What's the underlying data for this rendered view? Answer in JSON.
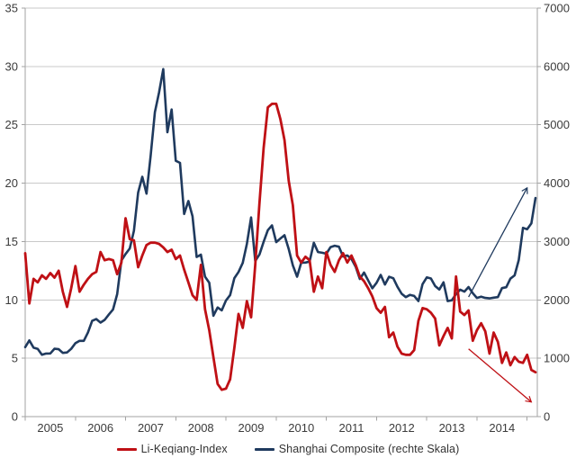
{
  "chart_data": {
    "type": "line",
    "title": "",
    "x_unit": "month",
    "x_start": "2005-01",
    "x_end": "2015-03",
    "x_tick_labels": [
      "2005",
      "2006",
      "2007",
      "2008",
      "2009",
      "2010",
      "2011",
      "2012",
      "2013",
      "2014"
    ],
    "y_left": {
      "min": 0,
      "max": 35,
      "tick_step": 5,
      "tick_labels": [
        "0",
        "5",
        "10",
        "15",
        "20",
        "25",
        "30",
        "35"
      ]
    },
    "y_right": {
      "min": 0,
      "max": 7000,
      "tick_step": 1000,
      "tick_labels": [
        "0",
        "1000",
        "2000",
        "3000",
        "4000",
        "5000",
        "6000",
        "7000"
      ]
    },
    "grid": true,
    "legend_position": "bottom",
    "colors": {
      "red_series": "#bf1015",
      "blue_series": "#1f3a5e",
      "gridline": "#c9c9c9",
      "axis_line": "#a3a3a3",
      "tick_text": "#3b3b3b"
    },
    "series": [
      {
        "name": "Li-Keqiang-Index",
        "axis": "left",
        "color": "#bf1015",
        "values": [
          14.0,
          9.7,
          11.8,
          11.5,
          12.1,
          11.8,
          12.3,
          11.9,
          12.5,
          10.7,
          9.4,
          11.0,
          12.9,
          10.7,
          11.3,
          11.8,
          12.2,
          12.4,
          14.1,
          13.4,
          13.5,
          13.4,
          12.2,
          13.2,
          17.0,
          15.2,
          15.1,
          12.8,
          13.8,
          14.7,
          14.9,
          14.9,
          14.8,
          14.5,
          14.1,
          14.3,
          13.5,
          13.8,
          12.6,
          11.5,
          10.4,
          10.0,
          13.0,
          9.2,
          7.4,
          5.1,
          2.8,
          2.3,
          2.4,
          3.2,
          5.9,
          8.8,
          7.6,
          9.9,
          8.5,
          13.0,
          18.3,
          23.0,
          26.5,
          26.8,
          26.8,
          25.5,
          23.7,
          20.2,
          18.1,
          13.8,
          13.2,
          13.7,
          13.4,
          10.7,
          12.0,
          11.0,
          14.1,
          13.0,
          12.4,
          13.4,
          14.0,
          13.2,
          13.8,
          13.0,
          12.0,
          11.6,
          11.0,
          10.3,
          9.3,
          8.9,
          9.4,
          6.8,
          7.2,
          6.0,
          5.4,
          5.3,
          5.3,
          5.7,
          8.2,
          9.3,
          9.2,
          8.9,
          8.4,
          6.1,
          6.9,
          7.6,
          6.7,
          12.0,
          9.0,
          8.7,
          9.1,
          6.5,
          7.4,
          8.0,
          7.3,
          5.4,
          7.2,
          6.4,
          4.6,
          5.5,
          4.4,
          5.1,
          4.7,
          4.6,
          5.3,
          4.0,
          3.8
        ]
      },
      {
        "name": "Shanghai Composite (rechte Skala)",
        "axis": "right",
        "color": "#1f3a5e",
        "values": [
          1191,
          1306,
          1181,
          1159,
          1060,
          1081,
          1083,
          1162,
          1155,
          1092,
          1099,
          1161,
          1258,
          1299,
          1298,
          1440,
          1641,
          1672,
          1612,
          1658,
          1752,
          1837,
          2099,
          2675,
          2786,
          2881,
          3184,
          3841,
          4109,
          3821,
          4471,
          5218,
          5552,
          5955,
          4872,
          5262,
          4383,
          4348,
          3473,
          3694,
          3433,
          2736,
          2776,
          2397,
          2294,
          1729,
          1871,
          1821,
          1991,
          2083,
          2373,
          2477,
          2633,
          2959,
          3412,
          2668,
          2779,
          2995,
          3195,
          3277,
          2989,
          3052,
          3109,
          2871,
          2592,
          2398,
          2638,
          2639,
          2656,
          2979,
          2820,
          2808,
          2790,
          2905,
          2928,
          2911,
          2743,
          2762,
          2701,
          2567,
          2359,
          2468,
          2333,
          2199,
          2293,
          2428,
          2263,
          2396,
          2372,
          2225,
          2104,
          2047,
          2086,
          2068,
          1980,
          2269,
          2385,
          2366,
          2237,
          2177,
          2301,
          1979,
          1994,
          2098,
          2175,
          2141,
          2221,
          2116,
          2033,
          2056,
          2033,
          2026,
          2039,
          2048,
          2202,
          2217,
          2364,
          2420,
          2683,
          3235,
          3210,
          3310,
          3747
        ]
      }
    ],
    "annotations": {
      "arrows": [
        {
          "name": "shanghai-trend-arrow-up",
          "axis": "right",
          "color": "#1f3a5e",
          "from": {
            "month": "2013-11",
            "value": 2050
          },
          "to": {
            "month": "2015-01",
            "value": 3920
          }
        },
        {
          "name": "li-keqiang-trend-arrow-down",
          "axis": "left",
          "color": "#bf1015",
          "from": {
            "month": "2013-11",
            "value": 5.8
          },
          "to": {
            "month": "2015-02",
            "value": 1.25
          }
        }
      ]
    }
  }
}
